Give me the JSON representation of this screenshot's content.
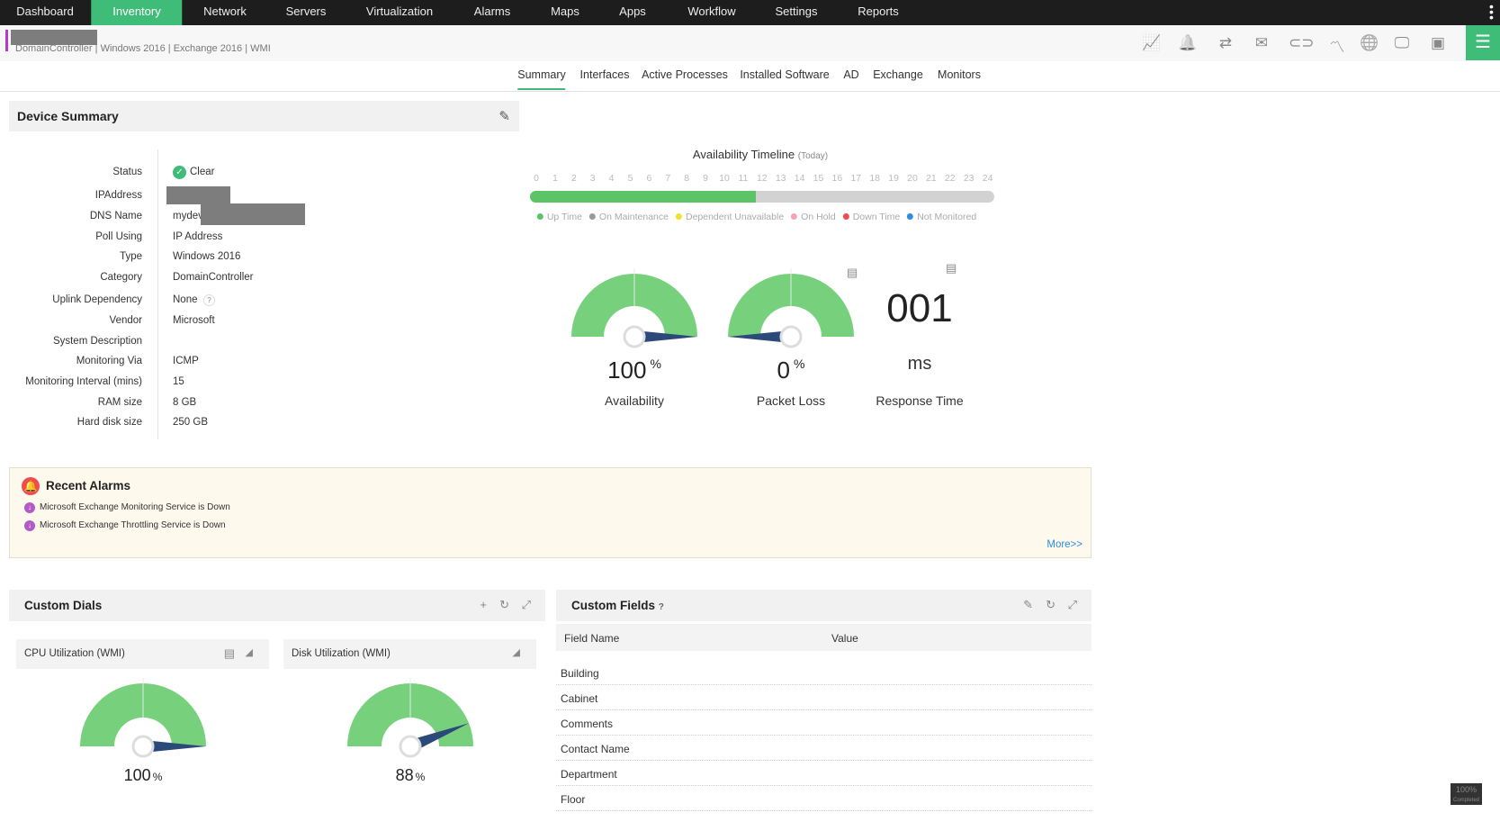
{
  "nav": {
    "items": [
      "Dashboard",
      "Inventory",
      "Network",
      "Servers",
      "Virtualization",
      "Alarms",
      "Maps",
      "Apps",
      "Workflow",
      "Settings",
      "Reports"
    ],
    "active": "Inventory"
  },
  "breadcrumb": [
    "DomainController",
    "Windows 2016",
    "Exchange 2016",
    "WMI"
  ],
  "toolbar_icons": [
    "graph-icon",
    "alarm-bell-icon",
    "workflow-icon",
    "mail-icon",
    "link-icon",
    "trend-icon",
    "globe-icon",
    "remote-desktop-icon",
    "terminal-icon"
  ],
  "tabs": [
    "Summary",
    "Interfaces",
    "Active Processes",
    "Installed Software",
    "AD",
    "Exchange",
    "Monitors"
  ],
  "active_tab": "Summary",
  "device_summary": {
    "title": "Device Summary",
    "rows": [
      {
        "label": "Status",
        "value": "Clear"
      },
      {
        "label": "IPAddress",
        "value": ""
      },
      {
        "label": "DNS Name",
        "value": "mydev"
      },
      {
        "label": "Poll Using",
        "value": "IP Address"
      },
      {
        "label": "Type",
        "value": "Windows 2016"
      },
      {
        "label": "Category",
        "value": "DomainController"
      },
      {
        "label": "Uplink Dependency",
        "value": "None"
      },
      {
        "label": "Vendor",
        "value": "Microsoft"
      },
      {
        "label": "System Description",
        "value": ""
      },
      {
        "label": "Monitoring Via",
        "value": "ICMP"
      },
      {
        "label": "Monitoring Interval (mins)",
        "value": "15"
      },
      {
        "label": "RAM size",
        "value": "8 GB"
      },
      {
        "label": "Hard disk size",
        "value": "250 GB"
      }
    ]
  },
  "timeline": {
    "title": "Availability Timeline",
    "subtitle": "(Today)",
    "hours": [
      "0",
      "1",
      "2",
      "3",
      "4",
      "5",
      "6",
      "7",
      "8",
      "9",
      "10",
      "11",
      "12",
      "13",
      "14",
      "15",
      "16",
      "17",
      "18",
      "19",
      "20",
      "21",
      "22",
      "23",
      "24"
    ],
    "uptime_fraction": 0.486,
    "legend": [
      {
        "label": "Up Time",
        "color": "#5cc466"
      },
      {
        "label": "On Maintenance",
        "color": "#999999"
      },
      {
        "label": "Dependent Unavailable",
        "color": "#f2e12b"
      },
      {
        "label": "On Hold",
        "color": "#f5a3b5"
      },
      {
        "label": "Down Time",
        "color": "#ef4d4d"
      },
      {
        "label": "Not Monitored",
        "color": "#2e8de0"
      }
    ]
  },
  "gauges": [
    {
      "value": "100",
      "unit": "%",
      "label": "Availability",
      "level": 100
    },
    {
      "value": "0",
      "unit": "%",
      "label": "Packet Loss",
      "level": 0
    }
  ],
  "response_time": {
    "value": "001",
    "unit": "ms",
    "label": "Response Time"
  },
  "alarms": {
    "title": "Recent Alarms",
    "items": [
      "Microsoft Exchange Monitoring Service is Down",
      "Microsoft Exchange Throttling Service is Down"
    ],
    "more": "More>>"
  },
  "custom_dials": {
    "title": "Custom Dials",
    "dials": [
      {
        "title": "CPU Utilization (WMI)",
        "value": "100",
        "unit": "%",
        "level": 100
      },
      {
        "title": "Disk Utilization (WMI)",
        "value": "88",
        "unit": "%",
        "level": 88
      }
    ]
  },
  "custom_fields": {
    "title": "Custom Fields",
    "help": "?",
    "columns": [
      "Field Name",
      "Value"
    ],
    "rows": [
      "Building",
      "Cabinet",
      "Comments",
      "Contact Name",
      "Department",
      "Floor"
    ]
  },
  "progress_badge": {
    "value": "100%",
    "label": "Completed"
  },
  "colors": {
    "accent": "#3fbc78",
    "gauge": "#77d17c",
    "needle": "#2b4a7a",
    "alarm_bg": "#fdf9ec",
    "link": "#2e8de0"
  }
}
